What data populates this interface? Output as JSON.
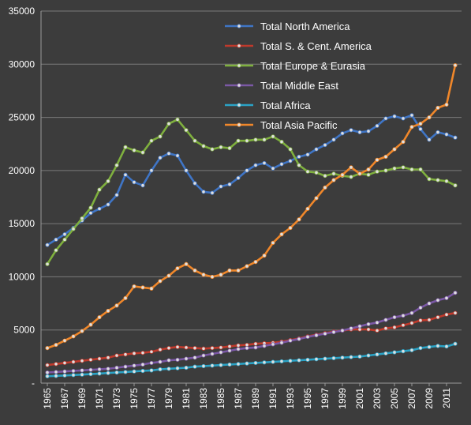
{
  "chart_data": {
    "type": "line",
    "title": "",
    "xlabel": "",
    "ylabel": "",
    "ylim": [
      0,
      35000
    ],
    "yticks": [
      0,
      5000,
      10000,
      15000,
      20000,
      25000,
      30000,
      35000
    ],
    "ytick_labels": [
      "-",
      "5000",
      "10000",
      "15000",
      "20000",
      "25000",
      "30000",
      "35000"
    ],
    "grid": true,
    "legend_position": "top-center",
    "x": [
      1965,
      1966,
      1967,
      1968,
      1969,
      1970,
      1971,
      1972,
      1973,
      1974,
      1975,
      1976,
      1977,
      1978,
      1979,
      1980,
      1981,
      1982,
      1983,
      1984,
      1985,
      1986,
      1987,
      1988,
      1989,
      1990,
      1991,
      1992,
      1993,
      1994,
      1995,
      1996,
      1997,
      1998,
      1999,
      2000,
      2001,
      2002,
      2003,
      2004,
      2005,
      2006,
      2007,
      2008,
      2009,
      2010,
      2011,
      2012
    ],
    "xtick_labels": [
      "1965",
      "1967",
      "1969",
      "1971",
      "1973",
      "1975",
      "1977",
      "1979",
      "1981",
      "1983",
      "1985",
      "1987",
      "1989",
      "1991",
      "1993",
      "1995",
      "1997",
      "1999",
      "2001",
      "2003",
      "2005",
      "2007",
      "2009",
      "2011"
    ],
    "series": [
      {
        "name": "Total North America",
        "color": "#3f75c6",
        "values": [
          13000,
          13500,
          14000,
          14600,
          15300,
          16000,
          16400,
          16800,
          17700,
          19600,
          18900,
          18600,
          20000,
          21200,
          21600,
          21400,
          20000,
          18800,
          18000,
          17900,
          18500,
          18700,
          19300,
          20000,
          20500,
          20700,
          20200,
          20600,
          20900,
          21300,
          21500,
          22000,
          22400,
          22900,
          23500,
          23800,
          23600,
          23700,
          24200,
          24900,
          25100,
          24900,
          25200,
          23900,
          22900,
          23600,
          23400,
          23100
        ]
      },
      {
        "name": "Total S. & Cent. America",
        "color": "#c0392b",
        "values": [
          1700,
          1800,
          1900,
          2000,
          2100,
          2200,
          2300,
          2400,
          2600,
          2700,
          2800,
          2850,
          2950,
          3150,
          3300,
          3400,
          3350,
          3300,
          3250,
          3300,
          3350,
          3450,
          3550,
          3600,
          3700,
          3750,
          3800,
          3900,
          4050,
          4200,
          4400,
          4550,
          4700,
          4850,
          4950,
          5050,
          5050,
          5050,
          4950,
          5150,
          5250,
          5450,
          5650,
          5900,
          5950,
          6200,
          6450,
          6600
        ]
      },
      {
        "name": "Total Europe & Eurasia",
        "color": "#7fb03e",
        "values": [
          11200,
          12500,
          13500,
          14500,
          15500,
          16500,
          18200,
          19000,
          20500,
          22200,
          21900,
          21700,
          22800,
          23200,
          24400,
          24800,
          23800,
          22800,
          22300,
          22000,
          22200,
          22100,
          22800,
          22800,
          22900,
          22900,
          23200,
          22700,
          22000,
          20500,
          19900,
          19800,
          19500,
          19700,
          19500,
          19400,
          19700,
          19600,
          19900,
          20000,
          20200,
          20300,
          20100,
          20100,
          19200,
          19100,
          19000,
          18600
        ]
      },
      {
        "name": "Total Middle East",
        "color": "#7b58a6",
        "values": [
          1000,
          1050,
          1100,
          1150,
          1200,
          1250,
          1300,
          1350,
          1450,
          1550,
          1650,
          1750,
          1900,
          2000,
          2150,
          2200,
          2300,
          2400,
          2600,
          2750,
          2900,
          3050,
          3200,
          3300,
          3350,
          3500,
          3650,
          3800,
          4000,
          4150,
          4350,
          4500,
          4650,
          4800,
          4950,
          5150,
          5350,
          5550,
          5700,
          5950,
          6200,
          6350,
          6600,
          7100,
          7500,
          7800,
          8000,
          8500
        ]
      },
      {
        "name": "Total Africa",
        "color": "#2aa3c6",
        "values": [
          650,
          680,
          720,
          760,
          800,
          850,
          900,
          950,
          1000,
          1050,
          1100,
          1150,
          1200,
          1300,
          1350,
          1400,
          1450,
          1550,
          1600,
          1650,
          1700,
          1750,
          1800,
          1850,
          1900,
          1950,
          2000,
          2050,
          2100,
          2150,
          2200,
          2250,
          2300,
          2350,
          2400,
          2450,
          2500,
          2600,
          2700,
          2800,
          2900,
          3000,
          3100,
          3300,
          3400,
          3500,
          3450,
          3700
        ]
      },
      {
        "name": "Total Asia Pacific",
        "color": "#f0872a",
        "values": [
          3300,
          3600,
          4000,
          4400,
          4900,
          5500,
          6200,
          6800,
          7300,
          8000,
          9100,
          9000,
          8900,
          9600,
          10100,
          10800,
          11200,
          10600,
          10200,
          10000,
          10200,
          10600,
          10600,
          11000,
          11400,
          12000,
          13200,
          14000,
          14600,
          15400,
          16400,
          17400,
          18400,
          19100,
          19600,
          20300,
          19700,
          20100,
          21000,
          21300,
          22000,
          22700,
          24100,
          24400,
          25000,
          25900,
          26200,
          29900
        ]
      }
    ]
  }
}
